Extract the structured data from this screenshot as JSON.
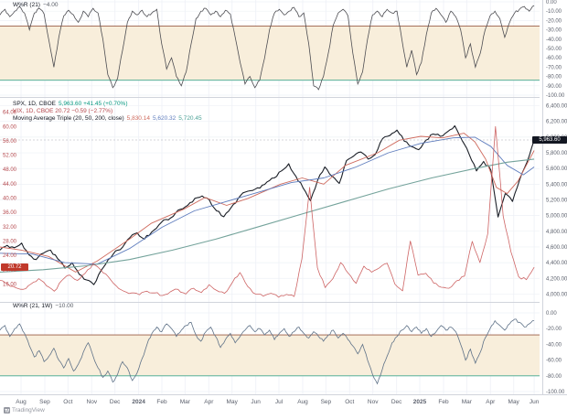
{
  "meta": {
    "watermark": "TradingView"
  },
  "colors": {
    "grid": "#eef1f6",
    "grid_v": "#f1f3f8",
    "separator": "#d1d4dc",
    "axis_text": "#5a5f6b",
    "axis_text_red": "#b5484d",
    "band_fill": "#f8eedb",
    "band_upper": "#9a5b44",
    "band_lower": "#3fa68e",
    "osc_top": "#4d4d52",
    "osc_bottom": "#5f7288",
    "price": "#1b1f27",
    "ma_fast": "#cf6a5d",
    "ma_mid": "#5f7dbe",
    "ma_slow": "#74a39b",
    "vix": "#c64a4a",
    "up_green": "#089981",
    "last_line": "#9598a1",
    "label_black_bg": "#131722",
    "label_red_bg": "#c0392b"
  },
  "chart_data": [
    {
      "id": "top-oscillator",
      "type": "line",
      "title": "W%R (21)",
      "last_label": "−4.00",
      "ylim": [
        -100,
        0
      ],
      "bands": {
        "upper": -26,
        "lower": -84
      },
      "yticks": [
        0,
        -10,
        -20,
        -30,
        -40,
        -50,
        -60,
        -70,
        -80,
        -90,
        -100
      ],
      "series": [
        {
          "name": "oscillator",
          "xspan": 99,
          "values": [
            -14,
            -8,
            -16,
            -10,
            -5,
            -12,
            -30,
            -12,
            -7,
            -13,
            -42,
            -70,
            -38,
            -15,
            -9,
            -14,
            -22,
            -10,
            -16,
            -7,
            -12,
            -40,
            -78,
            -92,
            -82,
            -52,
            -22,
            -10,
            -14,
            -9,
            -16,
            -12,
            -8,
            -45,
            -72,
            -60,
            -80,
            -90,
            -75,
            -45,
            -18,
            -10,
            -7,
            -14,
            -10,
            -16,
            -9,
            -13,
            -38,
            -65,
            -88,
            -80,
            -92,
            -84,
            -60,
            -30,
            -12,
            -8,
            -14,
            -10,
            -6,
            -16,
            -12,
            -45,
            -90,
            -94,
            -80,
            -55,
            -25,
            -12,
            -8,
            -15,
            -55,
            -88,
            -75,
            -40,
            -14,
            -10,
            -16,
            -8,
            -12,
            -10,
            -40,
            -70,
            -52,
            -78,
            -65,
            -35,
            -12,
            -7,
            -14,
            -22,
            -10,
            -16,
            -30,
            -60,
            -45,
            -70,
            -55,
            -30,
            -15,
            -10,
            -18,
            -38,
            -22,
            -12,
            -8,
            -5,
            -10,
            -4
          ]
        }
      ]
    },
    {
      "id": "main",
      "type": "line",
      "legend": {
        "symbol": "SPX, 1D, CBOE",
        "change": "5,963.60 +41.45 (+0.70%)",
        "vix_row": "VIX, 1D, CBOE  20.72 −0.59 (−2.77%)",
        "ma_row_label": "Moving Average Triple (20, 50, 200, close)",
        "ma_fast_val": "5,830.14",
        "ma_mid_val": "5,620.32",
        "ma_slow_val": "5,720.45"
      },
      "last": {
        "spx": 5963.6,
        "spx_text": "5,963.60",
        "vix": 20.72,
        "vix_text": "20.72"
      },
      "ylim_price": [
        3900,
        6500
      ],
      "ylim_vix": [
        11,
        68
      ],
      "yticks_price": [
        6400,
        6200,
        6000,
        5800,
        5600,
        5400,
        5200,
        5000,
        4800,
        4600,
        4400,
        4200,
        4000
      ],
      "yticks_vix": [
        64,
        60,
        56,
        52,
        48,
        44,
        40,
        36,
        32,
        28,
        24,
        20,
        16
      ],
      "xlabels": [
        {
          "t": "Aug",
          "x": 3.9
        },
        {
          "t": "Sep",
          "x": 8.3
        },
        {
          "t": "Oct",
          "x": 12.6
        },
        {
          "t": "Nov",
          "x": 17.0
        },
        {
          "t": "Dec",
          "x": 21.3
        },
        {
          "t": "2024",
          "x": 25.7,
          "bold": true
        },
        {
          "t": "Feb",
          "x": 30.0
        },
        {
          "t": "Mar",
          "x": 34.3
        },
        {
          "t": "Apr",
          "x": 38.7
        },
        {
          "t": "May",
          "x": 43.0
        },
        {
          "t": "Jun",
          "x": 47.4
        },
        {
          "t": "Jul",
          "x": 51.7
        },
        {
          "t": "Aug",
          "x": 56.1
        },
        {
          "t": "Sep",
          "x": 60.4
        },
        {
          "t": "Oct",
          "x": 64.8
        },
        {
          "t": "Nov",
          "x": 69.1
        },
        {
          "t": "Dec",
          "x": 73.5
        },
        {
          "t": "2025",
          "x": 77.8,
          "bold": true
        },
        {
          "t": "Feb",
          "x": 82.2
        },
        {
          "t": "Mar",
          "x": 86.5
        },
        {
          "t": "Apr",
          "x": 90.9
        },
        {
          "t": "May",
          "x": 95.2
        },
        {
          "t": "Jun",
          "x": 99.0
        }
      ],
      "series": [
        {
          "name": "spx-close",
          "scale": "price",
          "width": 1.1,
          "noise": 1.6,
          "xspan": 99,
          "values": [
            4560,
            4620,
            4590,
            4650,
            4500,
            4440,
            4520,
            4560,
            4450,
            4330,
            4400,
            4250,
            4180,
            4120,
            4300,
            4440,
            4550,
            4600,
            4720,
            4780,
            4700,
            4790,
            4880,
            4950,
            4990,
            5080,
            5130,
            5220,
            5250,
            5200,
            5060,
            4985,
            5100,
            5220,
            5300,
            5320,
            5350,
            5430,
            5480,
            5570,
            5660,
            5500,
            5350,
            5190,
            5450,
            5620,
            5500,
            5410,
            5700,
            5760,
            5810,
            5720,
            5780,
            5980,
            6020,
            6090,
            5950,
            5880,
            5840,
            5960,
            6040,
            6010,
            6070,
            6144,
            5960,
            5780,
            5570,
            5690,
            5580,
            4982,
            5280,
            5180,
            5460,
            5680,
            5963
          ]
        },
        {
          "name": "ma-fast",
          "scale": "price",
          "width": 0.9,
          "noise": 0,
          "points": [
            [
              0,
              4600
            ],
            [
              4,
              4560
            ],
            [
              9,
              4480
            ],
            [
              14,
              4280
            ],
            [
              18,
              4420
            ],
            [
              24,
              4700
            ],
            [
              28,
              4900
            ],
            [
              34,
              5080
            ],
            [
              38,
              5230
            ],
            [
              42,
              5130
            ],
            [
              46,
              5220
            ],
            [
              52,
              5400
            ],
            [
              56,
              5480
            ],
            [
              60,
              5400
            ],
            [
              64,
              5640
            ],
            [
              70,
              5800
            ],
            [
              74,
              5960
            ],
            [
              78,
              6010
            ],
            [
              82,
              5990
            ],
            [
              86,
              6050
            ],
            [
              88,
              5940
            ],
            [
              90,
              5720
            ],
            [
              92,
              5360
            ],
            [
              94,
              5280
            ],
            [
              96,
              5440
            ],
            [
              98,
              5700
            ],
            [
              99,
              5830
            ]
          ]
        },
        {
          "name": "ma-mid",
          "scale": "price",
          "width": 0.9,
          "noise": 0,
          "points": [
            [
              0,
              4520
            ],
            [
              6,
              4510
            ],
            [
              12,
              4400
            ],
            [
              18,
              4380
            ],
            [
              24,
              4580
            ],
            [
              30,
              4850
            ],
            [
              36,
              5060
            ],
            [
              42,
              5180
            ],
            [
              48,
              5300
            ],
            [
              54,
              5420
            ],
            [
              60,
              5480
            ],
            [
              66,
              5620
            ],
            [
              72,
              5800
            ],
            [
              78,
              5920
            ],
            [
              84,
              5990
            ],
            [
              88,
              6000
            ],
            [
              91,
              5880
            ],
            [
              94,
              5640
            ],
            [
              97,
              5520
            ],
            [
              99,
              5620
            ]
          ]
        },
        {
          "name": "ma-slow",
          "scale": "price",
          "width": 1.1,
          "noise": 0,
          "points": [
            [
              0,
              4280
            ],
            [
              8,
              4310
            ],
            [
              16,
              4360
            ],
            [
              24,
              4440
            ],
            [
              32,
              4560
            ],
            [
              40,
              4700
            ],
            [
              48,
              4860
            ],
            [
              56,
              5020
            ],
            [
              64,
              5180
            ],
            [
              72,
              5340
            ],
            [
              80,
              5480
            ],
            [
              88,
              5600
            ],
            [
              94,
              5680
            ],
            [
              99,
              5720
            ]
          ]
        },
        {
          "name": "vix",
          "scale": "vix",
          "width": 0.8,
          "noise": 1.4,
          "xspan": 99,
          "values": [
            17,
            16,
            15,
            14.5,
            16,
            17.5,
            15.5,
            14,
            17,
            18.5,
            17,
            19,
            21.5,
            20,
            18,
            15.5,
            14,
            13.5,
            13,
            14,
            13.5,
            12.8,
            13.8,
            14.5,
            13.2,
            14.8,
            13.6,
            15.8,
            14.2,
            13.4,
            16.4,
            19.2,
            15.3,
            13.2,
            12.6,
            13.4,
            12.3,
            13.1,
            12.5,
            23,
            43,
            20.5,
            15,
            17.5,
            22,
            19,
            16.2,
            21,
            19.3,
            20.5,
            21.8,
            16,
            14.1,
            28,
            18.5,
            19,
            16.3,
            15.1,
            14.8,
            16.9,
            18.2,
            27.9,
            22,
            30,
            60,
            35,
            25,
            18,
            17.2,
            20.7
          ]
        }
      ]
    },
    {
      "id": "bottom-oscillator",
      "type": "line",
      "title": "W%R (21, 1W)",
      "last_label": "−10.00",
      "ylim": [
        -100,
        0
      ],
      "bands": {
        "upper": -28,
        "lower": -80
      },
      "yticks": [
        0,
        -20,
        -40,
        -60,
        -80,
        -100
      ],
      "series": [
        {
          "name": "oscillator",
          "xspan": 99,
          "values": [
            -22,
            -16,
            -30,
            -20,
            -14,
            -26,
            -42,
            -56,
            -48,
            -62,
            -55,
            -45,
            -60,
            -70,
            -58,
            -74,
            -65,
            -50,
            -38,
            -55,
            -70,
            -82,
            -74,
            -88,
            -78,
            -62,
            -70,
            -86,
            -76,
            -58,
            -40,
            -26,
            -18,
            -24,
            -14,
            -20,
            -30,
            -22,
            -16,
            -12,
            -28,
            -36,
            -24,
            -18,
            -30,
            -44,
            -34,
            -26,
            -38,
            -30,
            -22,
            -16,
            -24,
            -20,
            -28,
            -22,
            -34,
            -26,
            -20,
            -30,
            -24,
            -18,
            -26,
            -32,
            -24,
            -30,
            -36,
            -28,
            -22,
            -32,
            -26,
            -34,
            -42,
            -52,
            -40,
            -60,
            -78,
            -90,
            -72,
            -55,
            -38,
            -30,
            -22,
            -16,
            -24,
            -18,
            -26,
            -20,
            -30,
            -24,
            -16,
            -22,
            -18,
            -24,
            -40,
            -60,
            -46,
            -64,
            -50,
            -32,
            -20,
            -10,
            -16,
            -22,
            -14,
            -8,
            -12,
            -18,
            -14,
            -10
          ]
        }
      ]
    }
  ]
}
